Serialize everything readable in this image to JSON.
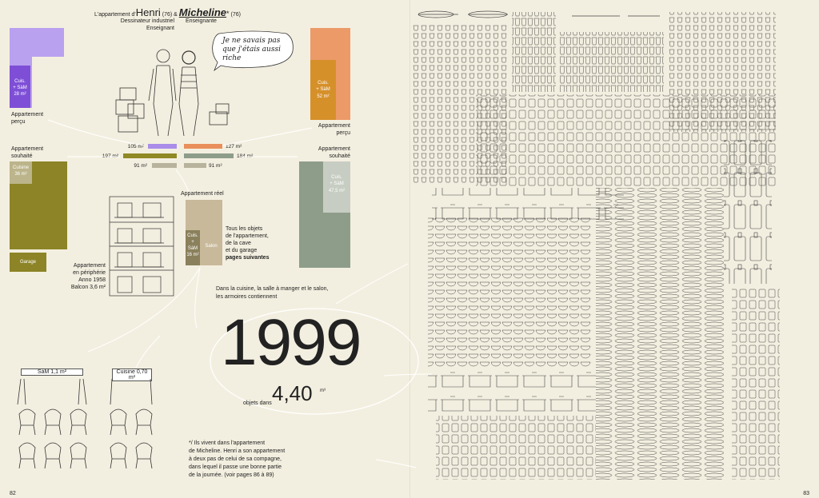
{
  "header": {
    "prefix": "L'appartement d'",
    "name1": "Henri",
    "age1": "(76)",
    "amp": "&",
    "name2": "Micheline",
    "star": "*",
    "age2": "(76)",
    "job1a": "Dessinateur industriel",
    "job1b": "Enseignant",
    "job2": "Enseignante"
  },
  "speech": "Je ne savais pas que j'étais aussi riche",
  "left_percu": {
    "block_label_1": "Cuis.",
    "block_label_2": "+ SàM",
    "block_label_3": "28 m²",
    "caption_1": "Appartement",
    "caption_2": "perçu"
  },
  "right_percu": {
    "block_label_1": "Cuis.",
    "block_label_2": "+ SàM",
    "block_label_3": "52 m²",
    "caption_1": "Appartement",
    "caption_2": "perçu"
  },
  "left_souhaite": {
    "caption_1": "Appartement",
    "caption_2": "souhaité",
    "cuisine_1": "Cuisine",
    "cuisine_2": "36 m²",
    "garage": "Garage"
  },
  "right_souhaite": {
    "caption_1": "Appartement",
    "caption_2": "souhaité",
    "label_1": "Cuis.",
    "label_2": "+ SàM",
    "label_3": "47,5 m²"
  },
  "bars": {
    "l1": "105 m²",
    "l2": "197 m²",
    "l3": "91 m²",
    "r1": "127 m²",
    "r2": "184 m²",
    "r3": "91 m²",
    "colors": {
      "henri": "#a98de8",
      "micheline": "#e98f5c",
      "olive": "#8f8a24",
      "sage": "#8e9d8a",
      "grey": "#b8b39c"
    }
  },
  "reel": {
    "title": "Appartement réel",
    "cuis_1": "Cuis.",
    "cuis_2": "+",
    "cuis_3": "SàM",
    "cuis_4": "16 m²",
    "salon": "Salon",
    "desc_1": "Tous les objets",
    "desc_2": "de l'appartement,",
    "desc_3": "de la cave",
    "desc_4": "et du garage",
    "desc_5": "pages suivantes"
  },
  "building": {
    "l1": "Appartement",
    "l2": "en périphérie",
    "l3": "Anno 1958",
    "l4": "Balcon 3,6 m²"
  },
  "armoires": {
    "l1": "Dans la cuisine, la salle à manger et le salon,",
    "l2": "les armoires contiennent"
  },
  "big": {
    "count": "1999",
    "prefix": "objets dans",
    "volume": "4,40",
    "unit": "m³"
  },
  "furniture": {
    "sam": "SàM 1,1 m²",
    "cuisine": "Cuisine 0,70 m²"
  },
  "footnote": {
    "l1": "*/ Ils vivent dans l'appartement",
    "l2": "de Micheline. Henri a son appartement",
    "l3": "à deux pas de celui de sa compagne,",
    "l4": "dans lequel il passe une bonne partie",
    "l5": "de la journée. (voir pages 86 à 89)"
  },
  "pages": {
    "left": "82",
    "right": "83"
  }
}
